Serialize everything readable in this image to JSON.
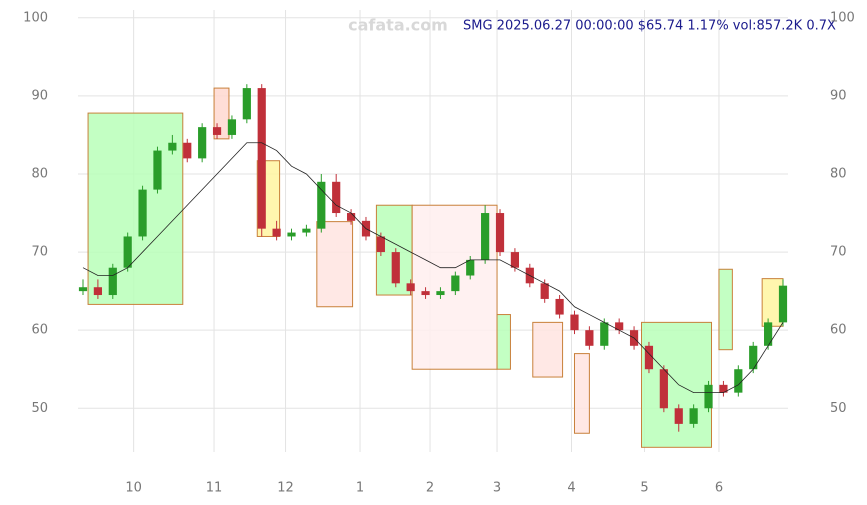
{
  "chart_data": {
    "type": "candlestick",
    "title": "SMG 2025.06.27 00:00:00 $65.74 1.17% vol:857.2K 0.7X",
    "watermark": "cafata.com",
    "xlim": [
      0,
      47
    ],
    "xticks": [
      {
        "value": 3.4,
        "label": "10"
      },
      {
        "value": 8.8,
        "label": "11"
      },
      {
        "value": 13.6,
        "label": "12"
      },
      {
        "value": 18.6,
        "label": "1"
      },
      {
        "value": 23.3,
        "label": "2"
      },
      {
        "value": 27.8,
        "label": "3"
      },
      {
        "value": 32.8,
        "label": "4"
      },
      {
        "value": 37.7,
        "label": "5"
      },
      {
        "value": 42.7,
        "label": "6"
      }
    ],
    "ylim": [
      44.4,
      101
    ],
    "yticks": [
      50,
      60,
      70,
      80,
      90,
      100
    ],
    "grid": true,
    "up_color": "#2a9d2a",
    "down_color": "#c0303a",
    "open": [
      65,
      65.5,
      64.5,
      68,
      72,
      78,
      83,
      84,
      82,
      86,
      85,
      87,
      91,
      73,
      72,
      72.5,
      73,
      79,
      75,
      74,
      72,
      70,
      66,
      65,
      64.5,
      65,
      67,
      69,
      75,
      70,
      68,
      66,
      64,
      62,
      60,
      58,
      61,
      60,
      58,
      55,
      50,
      48,
      50,
      53,
      52,
      55,
      58,
      61
    ],
    "high": [
      66.5,
      66.5,
      68.5,
      72.5,
      78.5,
      83.5,
      85,
      84.5,
      86.5,
      86.5,
      87.5,
      91.5,
      91.5,
      74,
      73,
      73.5,
      80,
      80,
      75.5,
      74.5,
      72.5,
      70.5,
      66.5,
      65.5,
      65.5,
      67.5,
      69.5,
      76,
      75.5,
      70.5,
      68.5,
      66.5,
      64.5,
      62.5,
      60.5,
      61.5,
      61.5,
      60.5,
      58.5,
      55.5,
      50.5,
      50.5,
      53.5,
      53.5,
      55.5,
      58.5,
      61.5,
      66.5
    ],
    "low": [
      64.5,
      64,
      64,
      67.5,
      71.5,
      77.5,
      82.5,
      81.5,
      81.5,
      84.5,
      84.5,
      86.5,
      72,
      71.5,
      71.5,
      72,
      72.5,
      74.5,
      73.5,
      71.5,
      69.5,
      65.5,
      64.5,
      64,
      64,
      64.5,
      66.5,
      68.5,
      69.5,
      67.5,
      65.5,
      63.5,
      61.5,
      59.5,
      57.5,
      57.5,
      59.5,
      57.5,
      54.5,
      49.5,
      47,
      47.5,
      49.5,
      51.5,
      51.5,
      54.5,
      57.5,
      60.5
    ],
    "close": [
      65.5,
      64.5,
      68,
      72,
      78,
      83,
      84,
      82,
      86,
      85,
      87,
      91,
      73,
      72,
      72.5,
      73,
      79,
      75,
      74,
      72,
      70,
      66,
      65,
      64.5,
      65,
      67,
      69,
      75,
      70,
      68,
      66,
      64,
      62,
      60,
      58,
      61,
      60,
      58,
      55,
      50,
      48,
      50,
      53,
      52,
      55,
      58,
      61,
      65.7
    ],
    "ma": {
      "color": "#222222",
      "values": [
        68,
        67,
        67,
        68,
        70,
        72,
        74,
        76,
        78,
        80,
        82,
        84,
        84,
        83,
        81,
        80,
        78,
        76,
        75,
        73,
        72,
        71,
        70,
        69,
        68,
        68,
        69,
        69,
        69,
        68,
        67,
        66,
        65,
        63,
        62,
        61,
        60,
        59,
        57,
        55,
        53,
        52,
        52,
        52,
        53,
        55,
        58,
        61
      ]
    },
    "boxes": [
      {
        "x": [
          0.34,
          6.7
        ],
        "y": [
          63.3,
          87.8
        ],
        "color": "#b8ffb8"
      },
      {
        "x": [
          8.8,
          9.8
        ],
        "y": [
          84.5,
          91
        ],
        "color": "#ffd8d0"
      },
      {
        "x": [
          11.7,
          13.2
        ],
        "y": [
          72,
          81.7
        ],
        "color": "#fff5a0"
      },
      {
        "x": [
          15.7,
          18.1
        ],
        "y": [
          63,
          73.9
        ],
        "color": "#ffe4e0"
      },
      {
        "x": [
          19.7,
          22.1
        ],
        "y": [
          64.5,
          76
        ],
        "color": "#b8ffb8"
      },
      {
        "x": [
          22.1,
          27.8
        ],
        "y": [
          55,
          76
        ],
        "color": "#ffeeee"
      },
      {
        "x": [
          27.8,
          28.7
        ],
        "y": [
          55,
          62
        ],
        "color": "#b8ffb8"
      },
      {
        "x": [
          30.2,
          32.2
        ],
        "y": [
          54,
          61
        ],
        "color": "#ffe4e0"
      },
      {
        "x": [
          33,
          34
        ],
        "y": [
          46.8,
          57
        ],
        "color": "#ffe4e0"
      },
      {
        "x": [
          37.5,
          42.2
        ],
        "y": [
          45,
          61
        ],
        "color": "#b8ffb8"
      },
      {
        "x": [
          42.7,
          43.6
        ],
        "y": [
          57.5,
          67.8
        ],
        "color": "#b8ffb8"
      },
      {
        "x": [
          45.6,
          47
        ],
        "y": [
          60.5,
          66.6
        ],
        "color": "#fff5a0"
      }
    ]
  }
}
